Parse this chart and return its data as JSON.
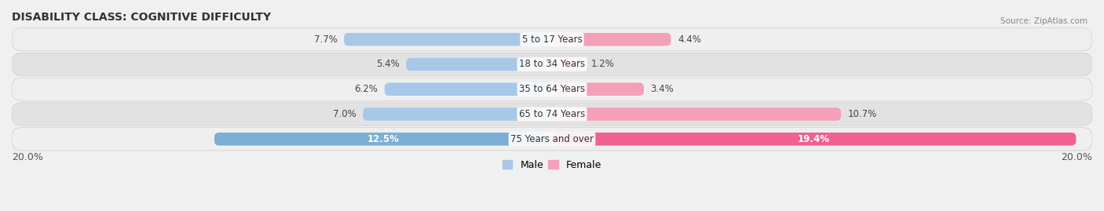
{
  "title": "DISABILITY CLASS: COGNITIVE DIFFICULTY",
  "source": "Source: ZipAtlas.com",
  "categories": [
    "5 to 17 Years",
    "18 to 34 Years",
    "35 to 64 Years",
    "65 to 74 Years",
    "75 Years and over"
  ],
  "male_values": [
    7.7,
    5.4,
    6.2,
    7.0,
    12.5
  ],
  "female_values": [
    4.4,
    1.2,
    3.4,
    10.7,
    19.4
  ],
  "male_color_normal": "#a8c8e8",
  "male_color_highlight": "#7bafd4",
  "female_color_normal": "#f4a0b8",
  "female_color_highlight": "#f06090",
  "row_bg_color_light": "#efefef",
  "row_bg_color_dark": "#e2e2e2",
  "max_value": 20.0,
  "bar_height": 0.52,
  "title_fontsize": 10,
  "value_fontsize": 8.5,
  "cat_fontsize": 8.5,
  "legend_labels": [
    "Male",
    "Female"
  ],
  "highlight_row": 4
}
